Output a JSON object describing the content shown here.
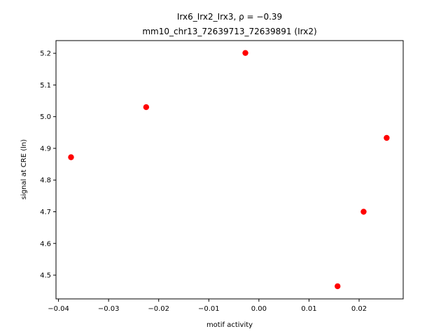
{
  "chart_data": {
    "type": "scatter",
    "title_line1": "Irx6_Irx2_Irx3, ρ = −0.39",
    "title_line2": "mm10_chr13_72639713_72639891 (Irx2)",
    "xlabel": "motif activity",
    "ylabel": "signal at CRE (ln)",
    "xlim": [
      -0.0405,
      0.0288
    ],
    "ylim": [
      4.425,
      5.24
    ],
    "xticks": [
      -0.04,
      -0.03,
      -0.02,
      -0.01,
      0.0,
      0.01,
      0.02
    ],
    "xtick_labels": [
      "−0.04",
      "−0.03",
      "−0.02",
      "−0.01",
      "0.00",
      "0.01",
      "0.02"
    ],
    "yticks": [
      4.5,
      4.6,
      4.7,
      4.8,
      4.9,
      5.0,
      5.1,
      5.2
    ],
    "ytick_labels": [
      "4.5",
      "4.6",
      "4.7",
      "4.8",
      "4.9",
      "5.0",
      "5.1",
      "5.2"
    ],
    "point_color": "#ff0000",
    "points": [
      {
        "x": -0.0375,
        "y": 4.872
      },
      {
        "x": -0.0225,
        "y": 5.03
      },
      {
        "x": -0.0027,
        "y": 5.201
      },
      {
        "x": 0.0157,
        "y": 4.465
      },
      {
        "x": 0.0209,
        "y": 4.7
      },
      {
        "x": 0.0255,
        "y": 4.933
      }
    ]
  }
}
